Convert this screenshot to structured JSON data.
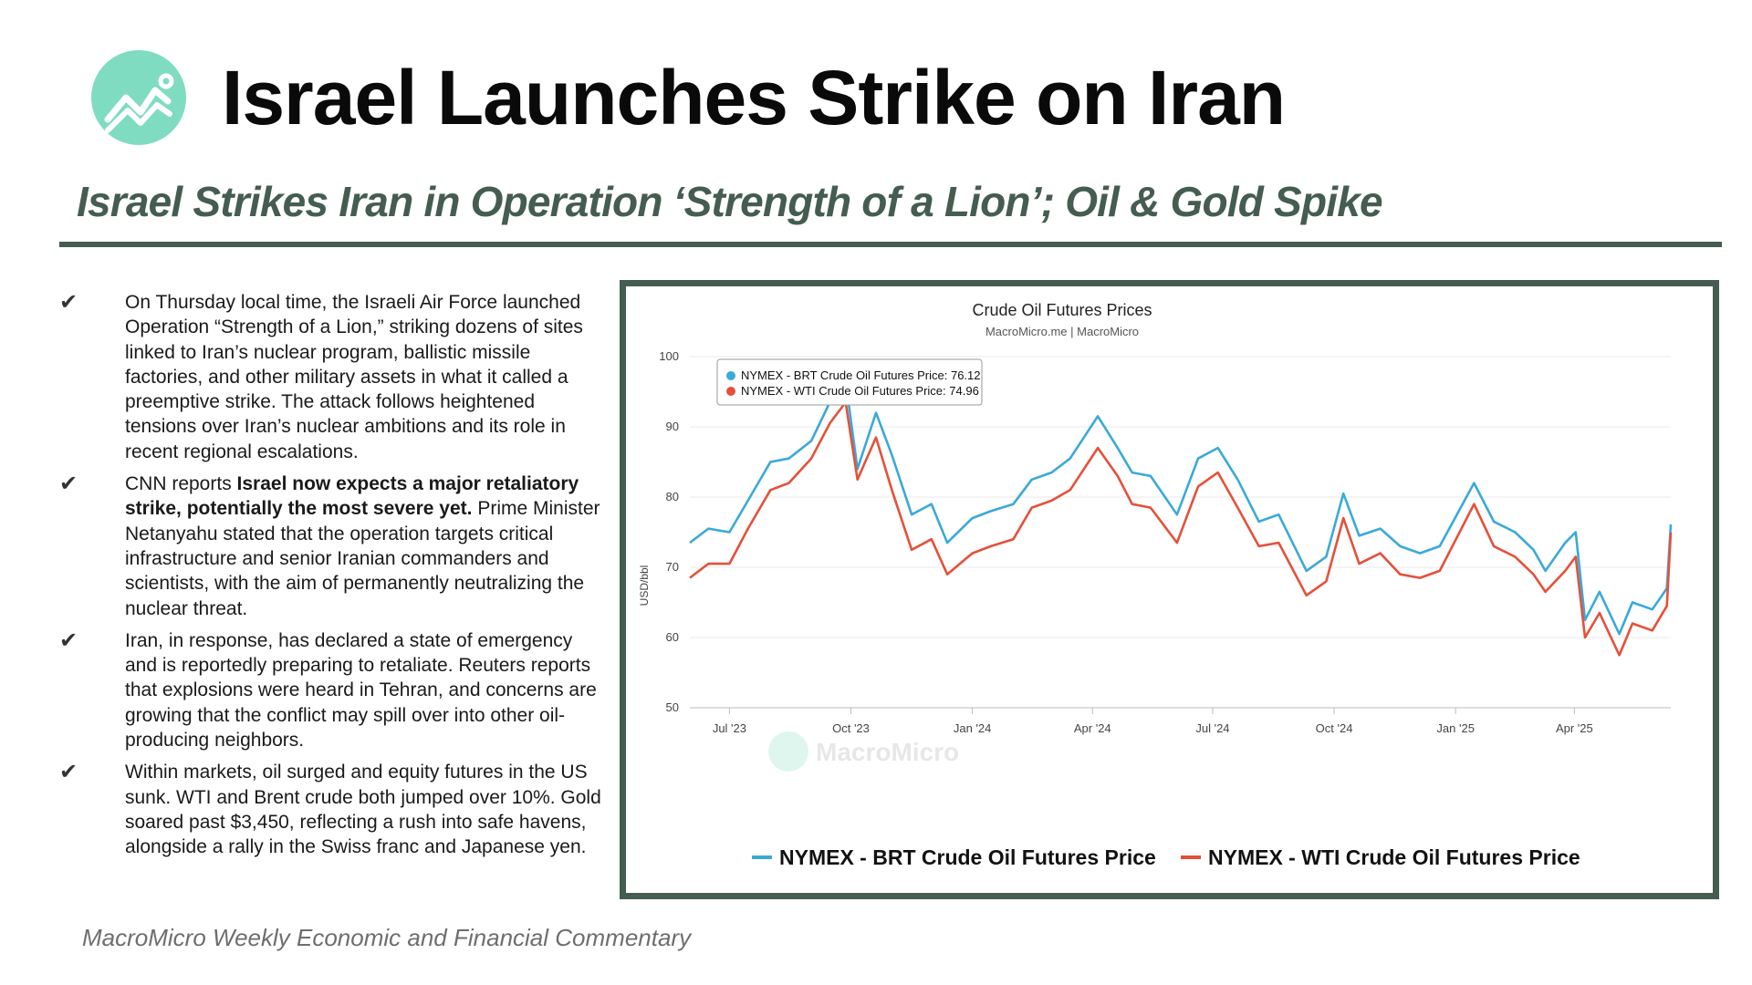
{
  "header": {
    "title": "Israel Launches Strike on Iran",
    "subtitle": "Israel Strikes Iran in Operation ‘Strength of a Lion’; Oil & Gold Spike"
  },
  "bullets": [
    {
      "pre": "On Thursday local time, the Israeli Air Force launched Operation “Strength of a Lion,” striking dozens of sites linked to Iran’s nuclear program, ballistic missile factories, and other military assets in what it called a preemptive strike. The attack follows heightened tensions over Iran’s nuclear ambitions and its role in recent regional escalations.",
      "bold": "",
      "post": ""
    },
    {
      "pre": "CNN reports ",
      "bold": "Israel now expects a major retaliatory strike, potentially the most severe yet.",
      "post": " Prime Minister Netanyahu stated that the operation targets critical infrastructure and senior Iranian commanders and scientists, with the aim of permanently neutralizing the nuclear threat."
    },
    {
      "pre": "Iran, in response, has declared a state of emergency and is reportedly preparing to retaliate. Reuters reports that explosions were heard in Tehran, and concerns are growing that the conflict may spill over into other oil-producing neighbors.",
      "bold": "",
      "post": ""
    },
    {
      "pre": "Within markets, oil surged and equity futures in the US sunk. WTI and Brent crude both jumped over 10%. Gold soared past $3,450, reflecting a rush into safe havens, alongside a rally in the Swiss franc and Japanese yen.",
      "bold": "",
      "post": ""
    }
  ],
  "footer": "MacroMicro Weekly Economic and Financial Commentary",
  "colors": {
    "accent": "#445d50",
    "logo": "#7fdcc1",
    "brent": "#3aa9d8",
    "wti": "#e5503a"
  },
  "chart_data": {
    "type": "line",
    "title": "Crude Oil Futures Prices",
    "subtitle": "MacroMicro.me | MacroMicro",
    "ylabel": "USD/bbl",
    "ylim": [
      50,
      100
    ],
    "yticks": [
      50,
      60,
      70,
      80,
      90,
      100
    ],
    "xlim": [
      "2023-06-01",
      "2025-06-13"
    ],
    "xticks": [
      {
        "date": "2023-07-01",
        "label": "Jul '23"
      },
      {
        "date": "2023-10-01",
        "label": "Oct '23"
      },
      {
        "date": "2024-01-01",
        "label": "Jan '24"
      },
      {
        "date": "2024-04-01",
        "label": "Apr '24"
      },
      {
        "date": "2024-07-01",
        "label": "Jul '24"
      },
      {
        "date": "2024-10-01",
        "label": "Oct '24"
      },
      {
        "date": "2025-01-01",
        "label": "Jan '25"
      },
      {
        "date": "2025-04-01",
        "label": "Apr '25"
      }
    ],
    "grid": true,
    "watermark": "MacroMicro",
    "tooltip": [
      {
        "label": "NYMEX - BRT Crude Oil Futures Price: 76.12"
      },
      {
        "label": "NYMEX - WTI Crude Oil Futures Price: 74.96"
      }
    ],
    "series": [
      {
        "name": "NYMEX - BRT Crude Oil Futures Price",
        "points": [
          [
            "2023-06-01",
            73.5
          ],
          [
            "2023-06-15",
            75.5
          ],
          [
            "2023-07-01",
            75
          ],
          [
            "2023-07-15",
            79.5
          ],
          [
            "2023-08-01",
            85
          ],
          [
            "2023-08-15",
            85.5
          ],
          [
            "2023-09-01",
            88
          ],
          [
            "2023-09-15",
            93.5
          ],
          [
            "2023-09-27",
            96.5
          ],
          [
            "2023-10-06",
            84
          ],
          [
            "2023-10-20",
            92
          ],
          [
            "2023-11-01",
            86
          ],
          [
            "2023-11-16",
            77.5
          ],
          [
            "2023-12-01",
            79
          ],
          [
            "2023-12-13",
            73.5
          ],
          [
            "2024-01-01",
            77
          ],
          [
            "2024-01-15",
            78
          ],
          [
            "2024-02-01",
            79
          ],
          [
            "2024-02-15",
            82.5
          ],
          [
            "2024-03-01",
            83.5
          ],
          [
            "2024-03-15",
            85.5
          ],
          [
            "2024-04-05",
            91.5
          ],
          [
            "2024-04-20",
            87
          ],
          [
            "2024-05-01",
            83.5
          ],
          [
            "2024-05-15",
            83
          ],
          [
            "2024-06-04",
            77.5
          ],
          [
            "2024-06-20",
            85.5
          ],
          [
            "2024-07-05",
            87
          ],
          [
            "2024-07-20",
            82.5
          ],
          [
            "2024-08-05",
            76.5
          ],
          [
            "2024-08-20",
            77.5
          ],
          [
            "2024-09-10",
            69.5
          ],
          [
            "2024-09-25",
            71.5
          ],
          [
            "2024-10-08",
            80.5
          ],
          [
            "2024-10-20",
            74.5
          ],
          [
            "2024-11-05",
            75.5
          ],
          [
            "2024-11-20",
            73
          ],
          [
            "2024-12-05",
            72
          ],
          [
            "2024-12-20",
            73
          ],
          [
            "2025-01-15",
            82
          ],
          [
            "2025-01-30",
            76.5
          ],
          [
            "2025-02-15",
            75
          ],
          [
            "2025-03-01",
            72.5
          ],
          [
            "2025-03-10",
            69.5
          ],
          [
            "2025-03-25",
            73.5
          ],
          [
            "2025-04-02",
            75
          ],
          [
            "2025-04-09",
            62.5
          ],
          [
            "2025-04-20",
            66.5
          ],
          [
            "2025-05-05",
            60.5
          ],
          [
            "2025-05-15",
            65
          ],
          [
            "2025-05-30",
            64
          ],
          [
            "2025-06-10",
            67
          ],
          [
            "2025-06-13",
            76.12
          ]
        ]
      },
      {
        "name": "NYMEX - WTI Crude Oil Futures Price",
        "points": [
          [
            "2023-06-01",
            68.5
          ],
          [
            "2023-06-15",
            70.5
          ],
          [
            "2023-07-01",
            70.5
          ],
          [
            "2023-07-15",
            75.5
          ],
          [
            "2023-08-01",
            81
          ],
          [
            "2023-08-15",
            82
          ],
          [
            "2023-09-01",
            85.5
          ],
          [
            "2023-09-15",
            90.5
          ],
          [
            "2023-09-27",
            93.5
          ],
          [
            "2023-10-06",
            82.5
          ],
          [
            "2023-10-20",
            88.5
          ],
          [
            "2023-11-01",
            81
          ],
          [
            "2023-11-16",
            72.5
          ],
          [
            "2023-12-01",
            74
          ],
          [
            "2023-12-13",
            69
          ],
          [
            "2024-01-01",
            72
          ],
          [
            "2024-01-15",
            73
          ],
          [
            "2024-02-01",
            74
          ],
          [
            "2024-02-15",
            78.5
          ],
          [
            "2024-03-01",
            79.5
          ],
          [
            "2024-03-15",
            81
          ],
          [
            "2024-04-05",
            87
          ],
          [
            "2024-04-20",
            83
          ],
          [
            "2024-05-01",
            79
          ],
          [
            "2024-05-15",
            78.5
          ],
          [
            "2024-06-04",
            73.5
          ],
          [
            "2024-06-20",
            81.5
          ],
          [
            "2024-07-05",
            83.5
          ],
          [
            "2024-07-20",
            78.5
          ],
          [
            "2024-08-05",
            73
          ],
          [
            "2024-08-20",
            73.5
          ],
          [
            "2024-09-10",
            66
          ],
          [
            "2024-09-25",
            68
          ],
          [
            "2024-10-08",
            77
          ],
          [
            "2024-10-20",
            70.5
          ],
          [
            "2024-11-05",
            72
          ],
          [
            "2024-11-20",
            69
          ],
          [
            "2024-12-05",
            68.5
          ],
          [
            "2024-12-20",
            69.5
          ],
          [
            "2025-01-15",
            79
          ],
          [
            "2025-01-30",
            73
          ],
          [
            "2025-02-15",
            71.5
          ],
          [
            "2025-03-01",
            69
          ],
          [
            "2025-03-10",
            66.5
          ],
          [
            "2025-03-25",
            69.5
          ],
          [
            "2025-04-02",
            71.5
          ],
          [
            "2025-04-09",
            60
          ],
          [
            "2025-04-20",
            63.5
          ],
          [
            "2025-05-05",
            57.5
          ],
          [
            "2025-05-15",
            62
          ],
          [
            "2025-05-30",
            61
          ],
          [
            "2025-06-10",
            64.5
          ],
          [
            "2025-06-13",
            74.96
          ]
        ]
      }
    ]
  }
}
